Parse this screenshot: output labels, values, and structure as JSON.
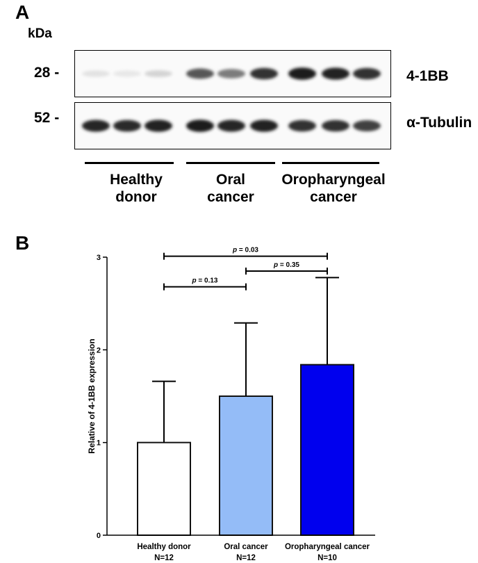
{
  "panel_a": {
    "letter": "A",
    "unit_label": "kDa",
    "rows": [
      {
        "marker": "28 -",
        "protein": "4-1BB"
      },
      {
        "marker": "52 -",
        "protein": "α-Tubulin"
      }
    ],
    "groups": [
      {
        "line1": "Healthy",
        "line2": "donor"
      },
      {
        "line1": "Oral",
        "line2": "cancer"
      },
      {
        "line1": "Oropharyngeal",
        "line2": "cancer"
      }
    ],
    "band_intensity": {
      "4-1BB": [
        0.12,
        0.1,
        0.18,
        0.7,
        0.55,
        0.85,
        0.95,
        0.92,
        0.85
      ],
      "alpha-Tubulin": [
        0.9,
        0.88,
        0.92,
        0.95,
        0.9,
        0.92,
        0.85,
        0.85,
        0.8
      ]
    }
  },
  "panel_b": {
    "letter": "B"
  },
  "chart_data": {
    "type": "bar",
    "categories": [
      "Healthy donor",
      "Oral cancer",
      "Oropharyngeal cancer"
    ],
    "n_labels": [
      "N=12",
      "N=12",
      "N=10"
    ],
    "values": [
      1.0,
      1.5,
      1.84
    ],
    "errors": [
      0.66,
      0.79,
      0.94
    ],
    "colors": [
      "#ffffff",
      "#94bcf7",
      "#0000ee"
    ],
    "ylabel": "Relative of 4-1BB expression",
    "xlabel": "",
    "ylim": [
      0,
      3
    ],
    "yticks": [
      0,
      1,
      2,
      3
    ],
    "significance": [
      {
        "from": 0,
        "to": 2,
        "y": 3.01,
        "label": "p = 0.03"
      },
      {
        "from": 1,
        "to": 2,
        "y": 2.85,
        "label": "p = 0.35"
      },
      {
        "from": 0,
        "to": 1,
        "y": 2.68,
        "label": "p = 0.13"
      }
    ]
  }
}
